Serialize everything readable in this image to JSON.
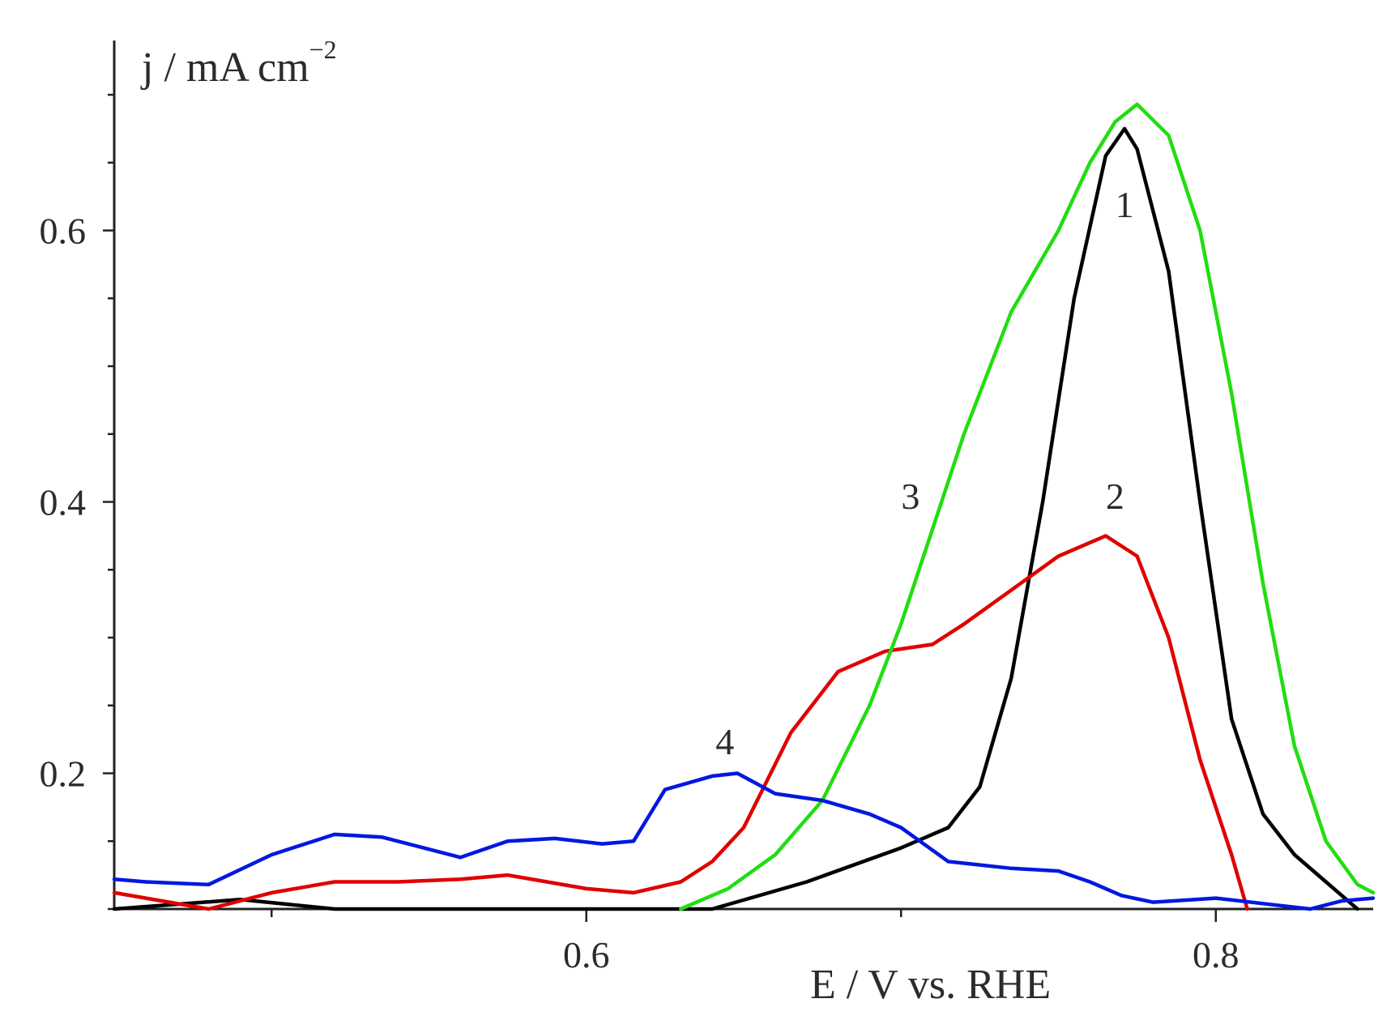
{
  "chart_data": {
    "type": "line",
    "xlabel": "E / V vs. RHE",
    "ylabel": "j / mA cm",
    "ylabel_superscript": "−2",
    "xlim": [
      0.45,
      0.85
    ],
    "ylim": [
      0.1,
      0.74
    ],
    "x_ticks": [
      0.6,
      0.8
    ],
    "x_tick_labels": [
      "0.6",
      "0.8"
    ],
    "x_minor_ticks": [
      0.5,
      0.7
    ],
    "y_ticks": [
      0.2,
      0.4,
      0.6
    ],
    "y_tick_labels": [
      "0.2",
      "0.4",
      "0.6"
    ],
    "grid": false,
    "legend": "none",
    "series": [
      {
        "label": "1",
        "color": "#000000",
        "points": [
          [
            0.45,
            0.1
          ],
          [
            0.49,
            0.107
          ],
          [
            0.52,
            0.1
          ],
          [
            0.64,
            0.1
          ],
          [
            0.67,
            0.12
          ],
          [
            0.7,
            0.145
          ],
          [
            0.715,
            0.16
          ],
          [
            0.725,
            0.19
          ],
          [
            0.735,
            0.27
          ],
          [
            0.745,
            0.4
          ],
          [
            0.755,
            0.55
          ],
          [
            0.765,
            0.655
          ],
          [
            0.771,
            0.675
          ],
          [
            0.775,
            0.66
          ],
          [
            0.785,
            0.57
          ],
          [
            0.795,
            0.4
          ],
          [
            0.805,
            0.24
          ],
          [
            0.815,
            0.17
          ],
          [
            0.825,
            0.14
          ],
          [
            0.835,
            0.12
          ],
          [
            0.845,
            0.1
          ]
        ]
      },
      {
        "label": "2",
        "color": "#e00000",
        "points": [
          [
            0.45,
            0.112
          ],
          [
            0.48,
            0.1
          ],
          [
            0.5,
            0.112
          ],
          [
            0.52,
            0.12
          ],
          [
            0.54,
            0.12
          ],
          [
            0.56,
            0.122
          ],
          [
            0.575,
            0.125
          ],
          [
            0.6,
            0.115
          ],
          [
            0.615,
            0.112
          ],
          [
            0.63,
            0.12
          ],
          [
            0.64,
            0.135
          ],
          [
            0.65,
            0.16
          ],
          [
            0.665,
            0.23
          ],
          [
            0.68,
            0.275
          ],
          [
            0.695,
            0.29
          ],
          [
            0.71,
            0.295
          ],
          [
            0.72,
            0.31
          ],
          [
            0.735,
            0.335
          ],
          [
            0.75,
            0.36
          ],
          [
            0.765,
            0.375
          ],
          [
            0.775,
            0.36
          ],
          [
            0.785,
            0.3
          ],
          [
            0.795,
            0.21
          ],
          [
            0.805,
            0.14
          ],
          [
            0.81,
            0.1
          ]
        ]
      },
      {
        "label": "3",
        "color": "#22dd11",
        "points": [
          [
            0.63,
            0.1
          ],
          [
            0.645,
            0.115
          ],
          [
            0.66,
            0.14
          ],
          [
            0.675,
            0.18
          ],
          [
            0.69,
            0.25
          ],
          [
            0.7,
            0.31
          ],
          [
            0.71,
            0.38
          ],
          [
            0.72,
            0.45
          ],
          [
            0.735,
            0.54
          ],
          [
            0.75,
            0.6
          ],
          [
            0.76,
            0.65
          ],
          [
            0.768,
            0.68
          ],
          [
            0.775,
            0.693
          ],
          [
            0.785,
            0.67
          ],
          [
            0.795,
            0.6
          ],
          [
            0.805,
            0.48
          ],
          [
            0.815,
            0.34
          ],
          [
            0.825,
            0.22
          ],
          [
            0.835,
            0.15
          ],
          [
            0.845,
            0.118
          ],
          [
            0.85,
            0.112
          ]
        ]
      },
      {
        "label": "4",
        "color": "#0018e0",
        "points": [
          [
            0.45,
            0.122
          ],
          [
            0.46,
            0.12
          ],
          [
            0.48,
            0.118
          ],
          [
            0.5,
            0.14
          ],
          [
            0.52,
            0.155
          ],
          [
            0.535,
            0.153
          ],
          [
            0.56,
            0.138
          ],
          [
            0.575,
            0.15
          ],
          [
            0.59,
            0.152
          ],
          [
            0.605,
            0.148
          ],
          [
            0.615,
            0.15
          ],
          [
            0.625,
            0.188
          ],
          [
            0.64,
            0.198
          ],
          [
            0.648,
            0.2
          ],
          [
            0.66,
            0.185
          ],
          [
            0.675,
            0.18
          ],
          [
            0.69,
            0.17
          ],
          [
            0.7,
            0.16
          ],
          [
            0.715,
            0.135
          ],
          [
            0.735,
            0.13
          ],
          [
            0.75,
            0.128
          ],
          [
            0.76,
            0.12
          ],
          [
            0.77,
            0.11
          ],
          [
            0.78,
            0.105
          ],
          [
            0.8,
            0.108
          ],
          [
            0.815,
            0.104
          ],
          [
            0.83,
            0.1
          ],
          [
            0.84,
            0.106
          ],
          [
            0.85,
            0.108
          ]
        ]
      }
    ],
    "curve_labels": [
      {
        "text": "1",
        "x": 0.771,
        "y": 0.61
      },
      {
        "text": "2",
        "x": 0.768,
        "y": 0.395
      },
      {
        "text": "3",
        "x": 0.703,
        "y": 0.395
      },
      {
        "text": "4",
        "x": 0.644,
        "y": 0.214
      }
    ]
  }
}
